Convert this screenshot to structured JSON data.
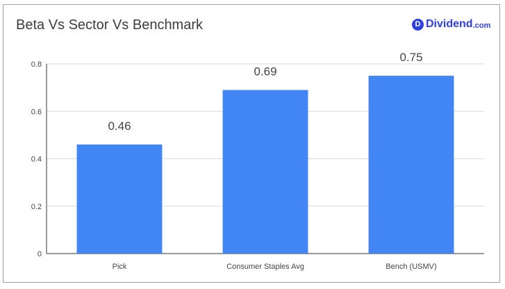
{
  "header": {
    "title": "Beta Vs Sector Vs Benchmark",
    "logo_letter": "D",
    "logo_word": "Dividend",
    "logo_tld": ".com"
  },
  "colors": {
    "bar": "#4285f4",
    "grid": "#dadada",
    "axis": "#333333",
    "brand": "#2e3fe0"
  },
  "chart_data": {
    "type": "bar",
    "title": "Beta Vs Sector Vs Benchmark",
    "categories": [
      "Pick",
      "Consumer Staples Avg",
      "Bench (USMV)"
    ],
    "values": [
      0.46,
      0.69,
      0.75
    ],
    "value_labels": [
      "0.46",
      "0.69",
      "0.75"
    ],
    "yticks": [
      "0",
      "0.2",
      "0.4",
      "0.6",
      "0.8"
    ],
    "ylim": [
      0,
      0.8
    ],
    "xlabel": "",
    "ylabel": "",
    "grid": true,
    "legend": "none"
  }
}
